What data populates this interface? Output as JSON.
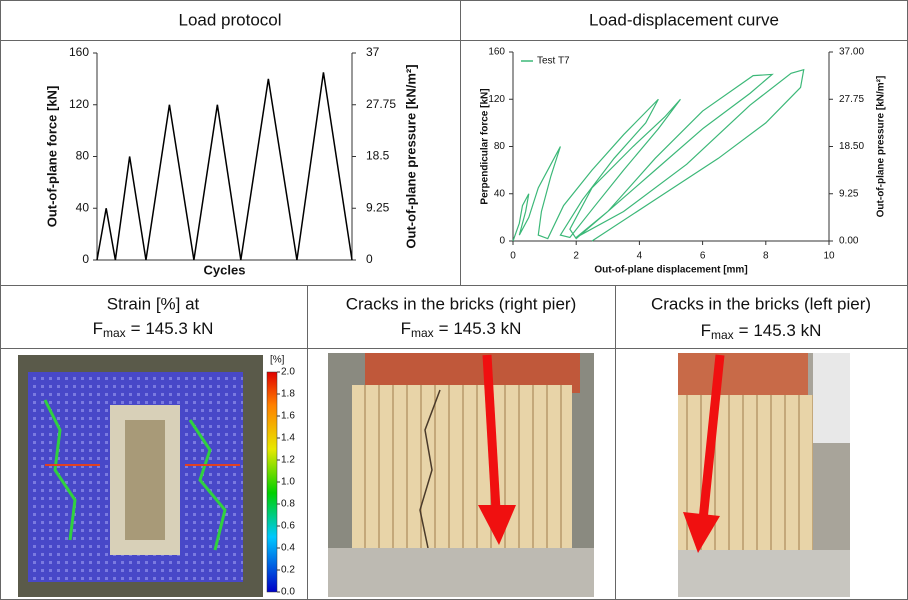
{
  "headers": {
    "load_protocol": "Load protocol",
    "load_displacement": "Load-displacement curve",
    "strain": {
      "line1": "Strain [%] at",
      "symbol": "F",
      "subscript": "max",
      "text": "= 145.3 kN"
    },
    "cracks_right": {
      "line1": "Cracks in the bricks (right pier)",
      "symbol": "F",
      "subscript": "max",
      "text": "= 145.3 kN"
    },
    "cracks_left": {
      "line1": "Cracks in the bricks (left pier)",
      "symbol": "F",
      "subscript": "max",
      "text": "= 145.3 kN"
    }
  },
  "strain_scale": {
    "unit": "[%]",
    "ticks": [
      {
        "value": 2,
        "label": "2.0"
      },
      {
        "value": 1.8,
        "label": "1.8"
      },
      {
        "value": 1.6,
        "label": "1.6"
      },
      {
        "value": 1.4,
        "label": "1.4"
      },
      {
        "value": 1.2,
        "label": "1.2"
      },
      {
        "value": 1,
        "label": "1.0"
      },
      {
        "value": 0.8,
        "label": "0.8"
      },
      {
        "value": 0.6,
        "label": "0.6"
      },
      {
        "value": 0.4,
        "label": "0.4"
      },
      {
        "value": 0.2,
        "label": "0.2"
      },
      {
        "value": 0,
        "label": "0.0"
      }
    ]
  },
  "chart_data": [
    {
      "type": "line",
      "x_label": "Cycles",
      "y_label": "Out-of-plane force [kN]",
      "y2_label": "Out-of-plane pressure [kN/m²]",
      "x": [
        0,
        0.9,
        1.8,
        3.2,
        4.8,
        7.1,
        9.5,
        11.8,
        14.1,
        16.8,
        19.6,
        22.2,
        25
      ],
      "series": [
        {
          "color": "#000000",
          "values": [
            0,
            40,
            0,
            80,
            0,
            120,
            0,
            120,
            0,
            140,
            0,
            145,
            0
          ]
        }
      ],
      "xlim": [
        0,
        25
      ],
      "ylim": [
        0,
        160
      ],
      "yticks": [
        0,
        40,
        80,
        120,
        160
      ],
      "y2lim": [
        0,
        37
      ],
      "y2ticks": [
        0,
        9.25,
        18.5,
        27.75,
        37
      ],
      "grid": false,
      "legend": false
    },
    {
      "type": "line",
      "x_label": "Out-of-plane displacement [mm]",
      "y_label": "Perpendicular force [kN]",
      "y2_label": "Out-of-plane pressure [kN/m²]",
      "x": [
        0,
        0.2,
        0.3,
        0.5,
        0.4,
        0.2,
        0.5,
        0.8,
        1.2,
        1.5,
        1.2,
        0.9,
        0.8,
        1.1,
        1.6,
        2.5,
        3.5,
        4.6,
        4.2,
        3.2,
        2.2,
        1.5,
        1.8,
        2.6,
        3.5,
        4.6,
        5.3,
        4.8,
        3.8,
        2.5,
        1.8,
        2.0,
        3.0,
        4.5,
        6.0,
        7.6,
        8.2,
        7.5,
        6.0,
        4.5,
        3.0,
        2.0,
        3.5,
        5.5,
        7.5,
        8.8,
        9.2,
        9.1,
        8.0,
        6.5,
        4.5,
        2.5
      ],
      "series": [
        {
          "name": "Test T7",
          "color": "#3cb878",
          "values": [
            0,
            15,
            30,
            40,
            25,
            5,
            20,
            45,
            65,
            80,
            55,
            25,
            5,
            2,
            30,
            60,
            90,
            120,
            100,
            70,
            35,
            5,
            3,
            30,
            60,
            95,
            120,
            105,
            80,
            45,
            10,
            2,
            25,
            70,
            110,
            140,
            141,
            125,
            95,
            60,
            25,
            3,
            25,
            65,
            115,
            142,
            145,
            130,
            100,
            70,
            35,
            0
          ]
        }
      ],
      "xlim": [
        0,
        10
      ],
      "xticks": [
        0,
        2,
        4,
        6,
        8,
        10
      ],
      "ylim": [
        0,
        160
      ],
      "yticks": [
        0,
        40,
        80,
        120,
        160
      ],
      "y2lim": [
        0,
        37
      ],
      "y2ticks": [
        {
          "value": 0,
          "label": "0.00"
        },
        {
          "value": 9.25,
          "label": "9.25"
        },
        {
          "value": 18.5,
          "label": "18.50"
        },
        {
          "value": 27.75,
          "label": "27.75"
        },
        {
          "value": 37,
          "label": "37.00"
        }
      ],
      "grid": false,
      "legend": "upper left"
    }
  ]
}
